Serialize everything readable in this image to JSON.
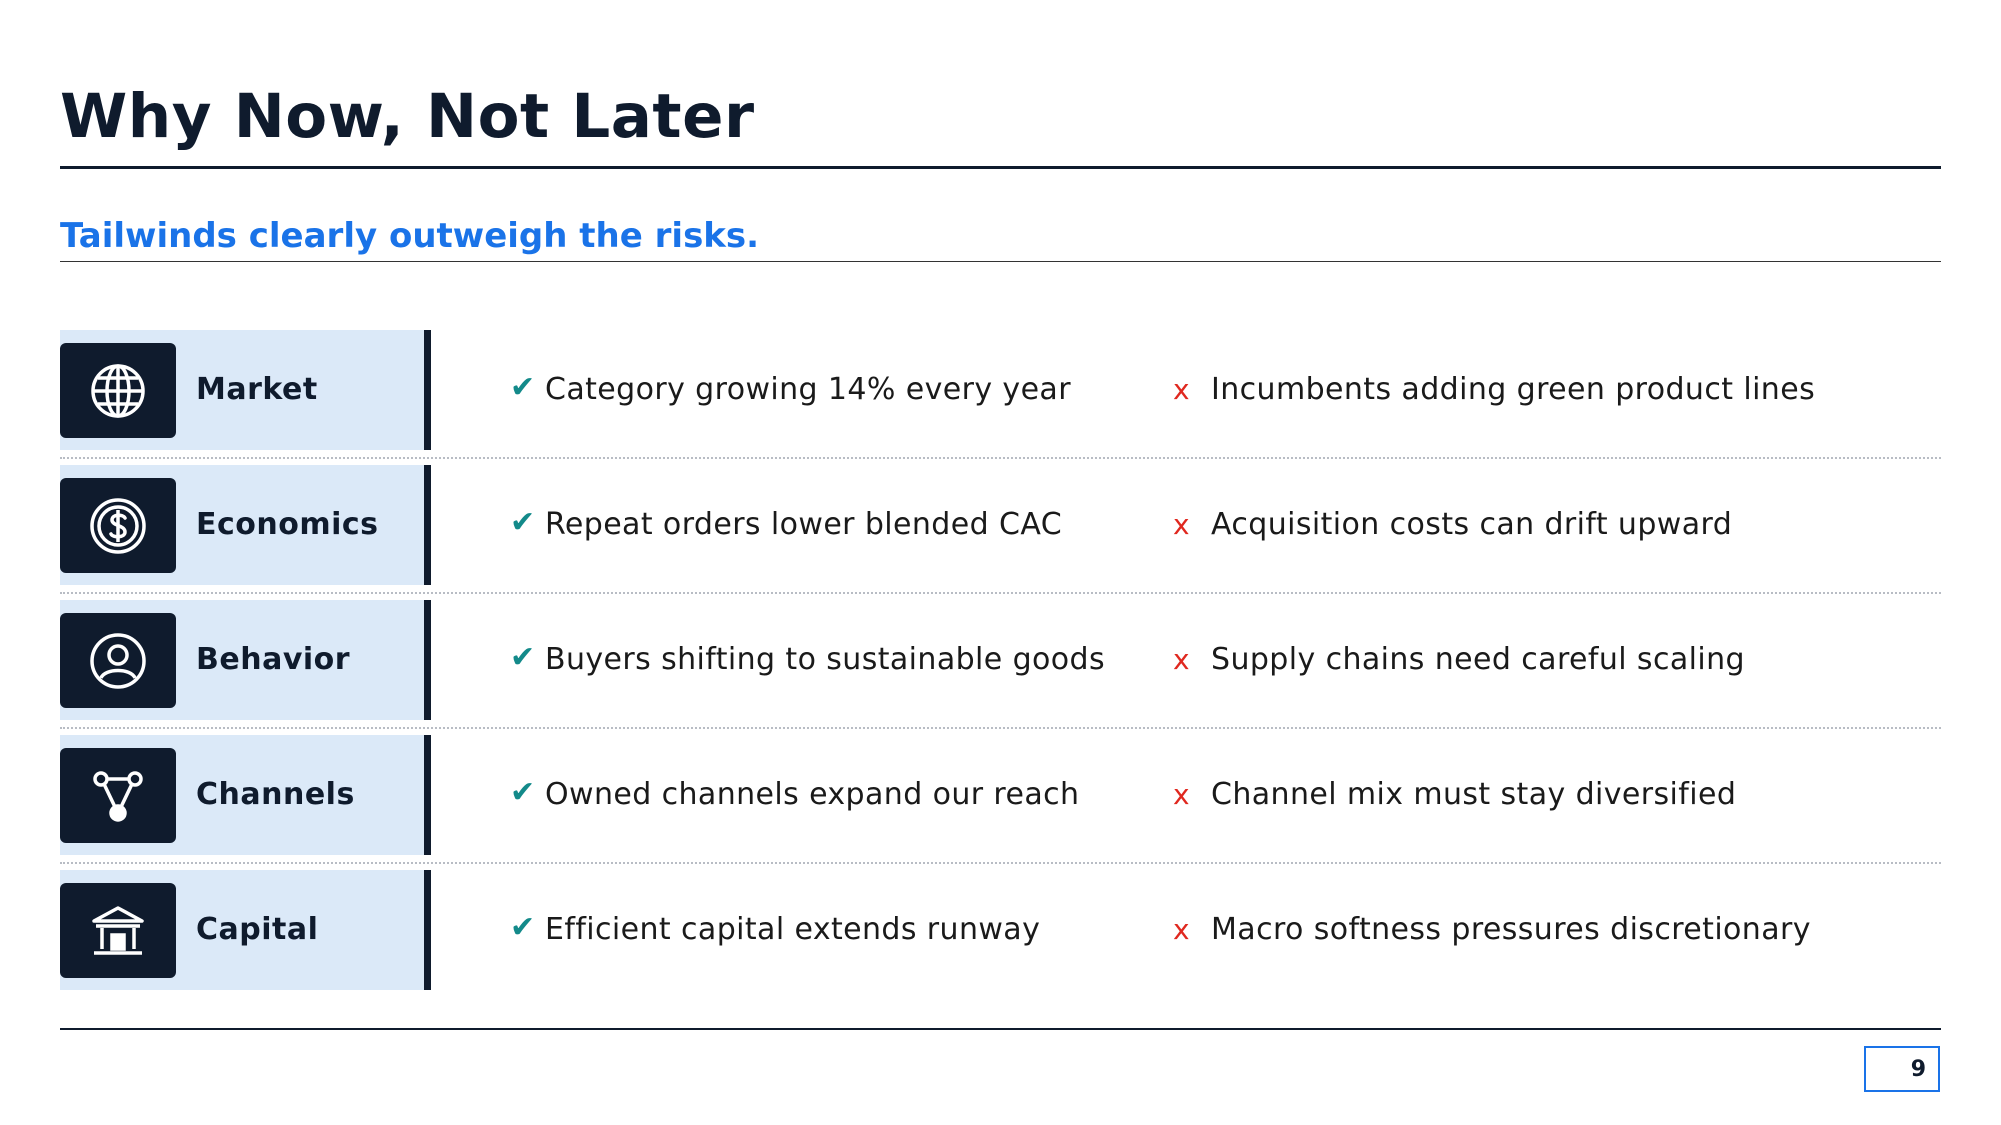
{
  "slide": {
    "title": "Why Now, Not Later",
    "subtitle": "Tailwinds clearly outweigh the risks.",
    "page_number": "9"
  },
  "rows": [
    {
      "category": "Market",
      "icon": "globe-icon",
      "pro_mark": "✔",
      "pro": "Category growing 14% every year",
      "con_mark": "x",
      "con": "Incumbents adding green product lines"
    },
    {
      "category": "Economics",
      "icon": "dollar-icon",
      "pro_mark": "✔",
      "pro": "Repeat orders lower blended CAC",
      "con_mark": "x",
      "con": "Acquisition costs can drift upward"
    },
    {
      "category": "Behavior",
      "icon": "user-icon",
      "pro_mark": "✔",
      "pro": "Buyers shifting to sustainable goods",
      "con_mark": "x",
      "con": "Supply chains need careful scaling"
    },
    {
      "category": "Channels",
      "icon": "network-icon",
      "pro_mark": "✔",
      "pro": "Owned channels expand our reach",
      "con_mark": "x",
      "con": "Channel mix must stay diversified"
    },
    {
      "category": "Capital",
      "icon": "bank-icon",
      "pro_mark": "✔",
      "pro": "Efficient capital extends runway",
      "con_mark": "x",
      "con": "Macro softness pressures discretionary"
    }
  ],
  "colors": {
    "navy": "#0f1b2d",
    "accent_blue": "#1a73e8",
    "category_bg": "#dbe9f8",
    "check_teal": "#138a8a",
    "cross_red": "#e0281f"
  }
}
